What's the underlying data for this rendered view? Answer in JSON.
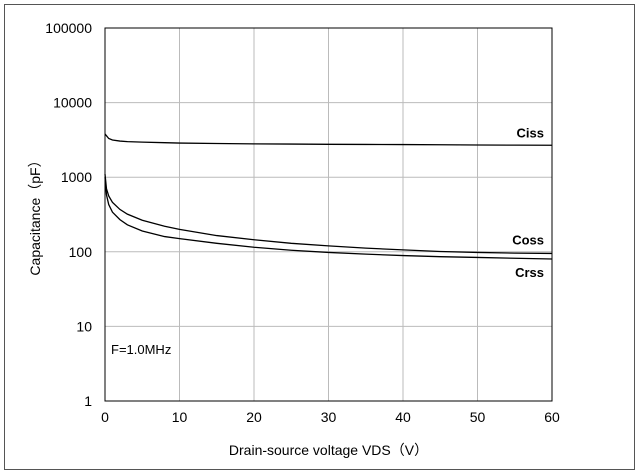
{
  "chart_data": {
    "type": "line",
    "title": "",
    "xlabel": "Drain-source voltage VDS（V）",
    "ylabel": "Capacitance（pF）",
    "xlim": [
      0,
      60
    ],
    "ylim": [
      1,
      100000
    ],
    "yscale": "log",
    "grid": true,
    "xticks": [
      "0",
      "10",
      "20",
      "30",
      "40",
      "50",
      "60"
    ],
    "yticks": [
      "1",
      "10",
      "100",
      "1000",
      "10000",
      "100000"
    ],
    "annotation": "F=1.0MHz",
    "series": [
      {
        "name": "Ciss",
        "x": [
          0,
          0.5,
          1,
          2,
          3,
          5,
          8,
          10,
          15,
          20,
          25,
          30,
          35,
          40,
          45,
          50,
          55,
          60
        ],
        "y": [
          3800,
          3300,
          3150,
          3050,
          3000,
          2950,
          2900,
          2870,
          2830,
          2800,
          2780,
          2760,
          2750,
          2740,
          2720,
          2700,
          2690,
          2680
        ]
      },
      {
        "name": "Coss",
        "x": [
          0,
          0.2,
          0.5,
          1,
          2,
          3,
          5,
          8,
          10,
          15,
          20,
          25,
          30,
          35,
          40,
          45,
          50,
          55,
          60
        ],
        "y": [
          1100,
          700,
          560,
          460,
          370,
          320,
          265,
          220,
          200,
          165,
          145,
          130,
          120,
          112,
          106,
          101,
          98,
          96,
          95
        ]
      },
      {
        "name": "Crss",
        "x": [
          0,
          0.2,
          0.5,
          1,
          2,
          3,
          5,
          8,
          10,
          15,
          20,
          25,
          30,
          35,
          40,
          45,
          50,
          55,
          60
        ],
        "y": [
          1000,
          580,
          430,
          340,
          270,
          230,
          190,
          160,
          150,
          130,
          115,
          105,
          98,
          93,
          89,
          86,
          84,
          82,
          80
        ]
      }
    ]
  }
}
